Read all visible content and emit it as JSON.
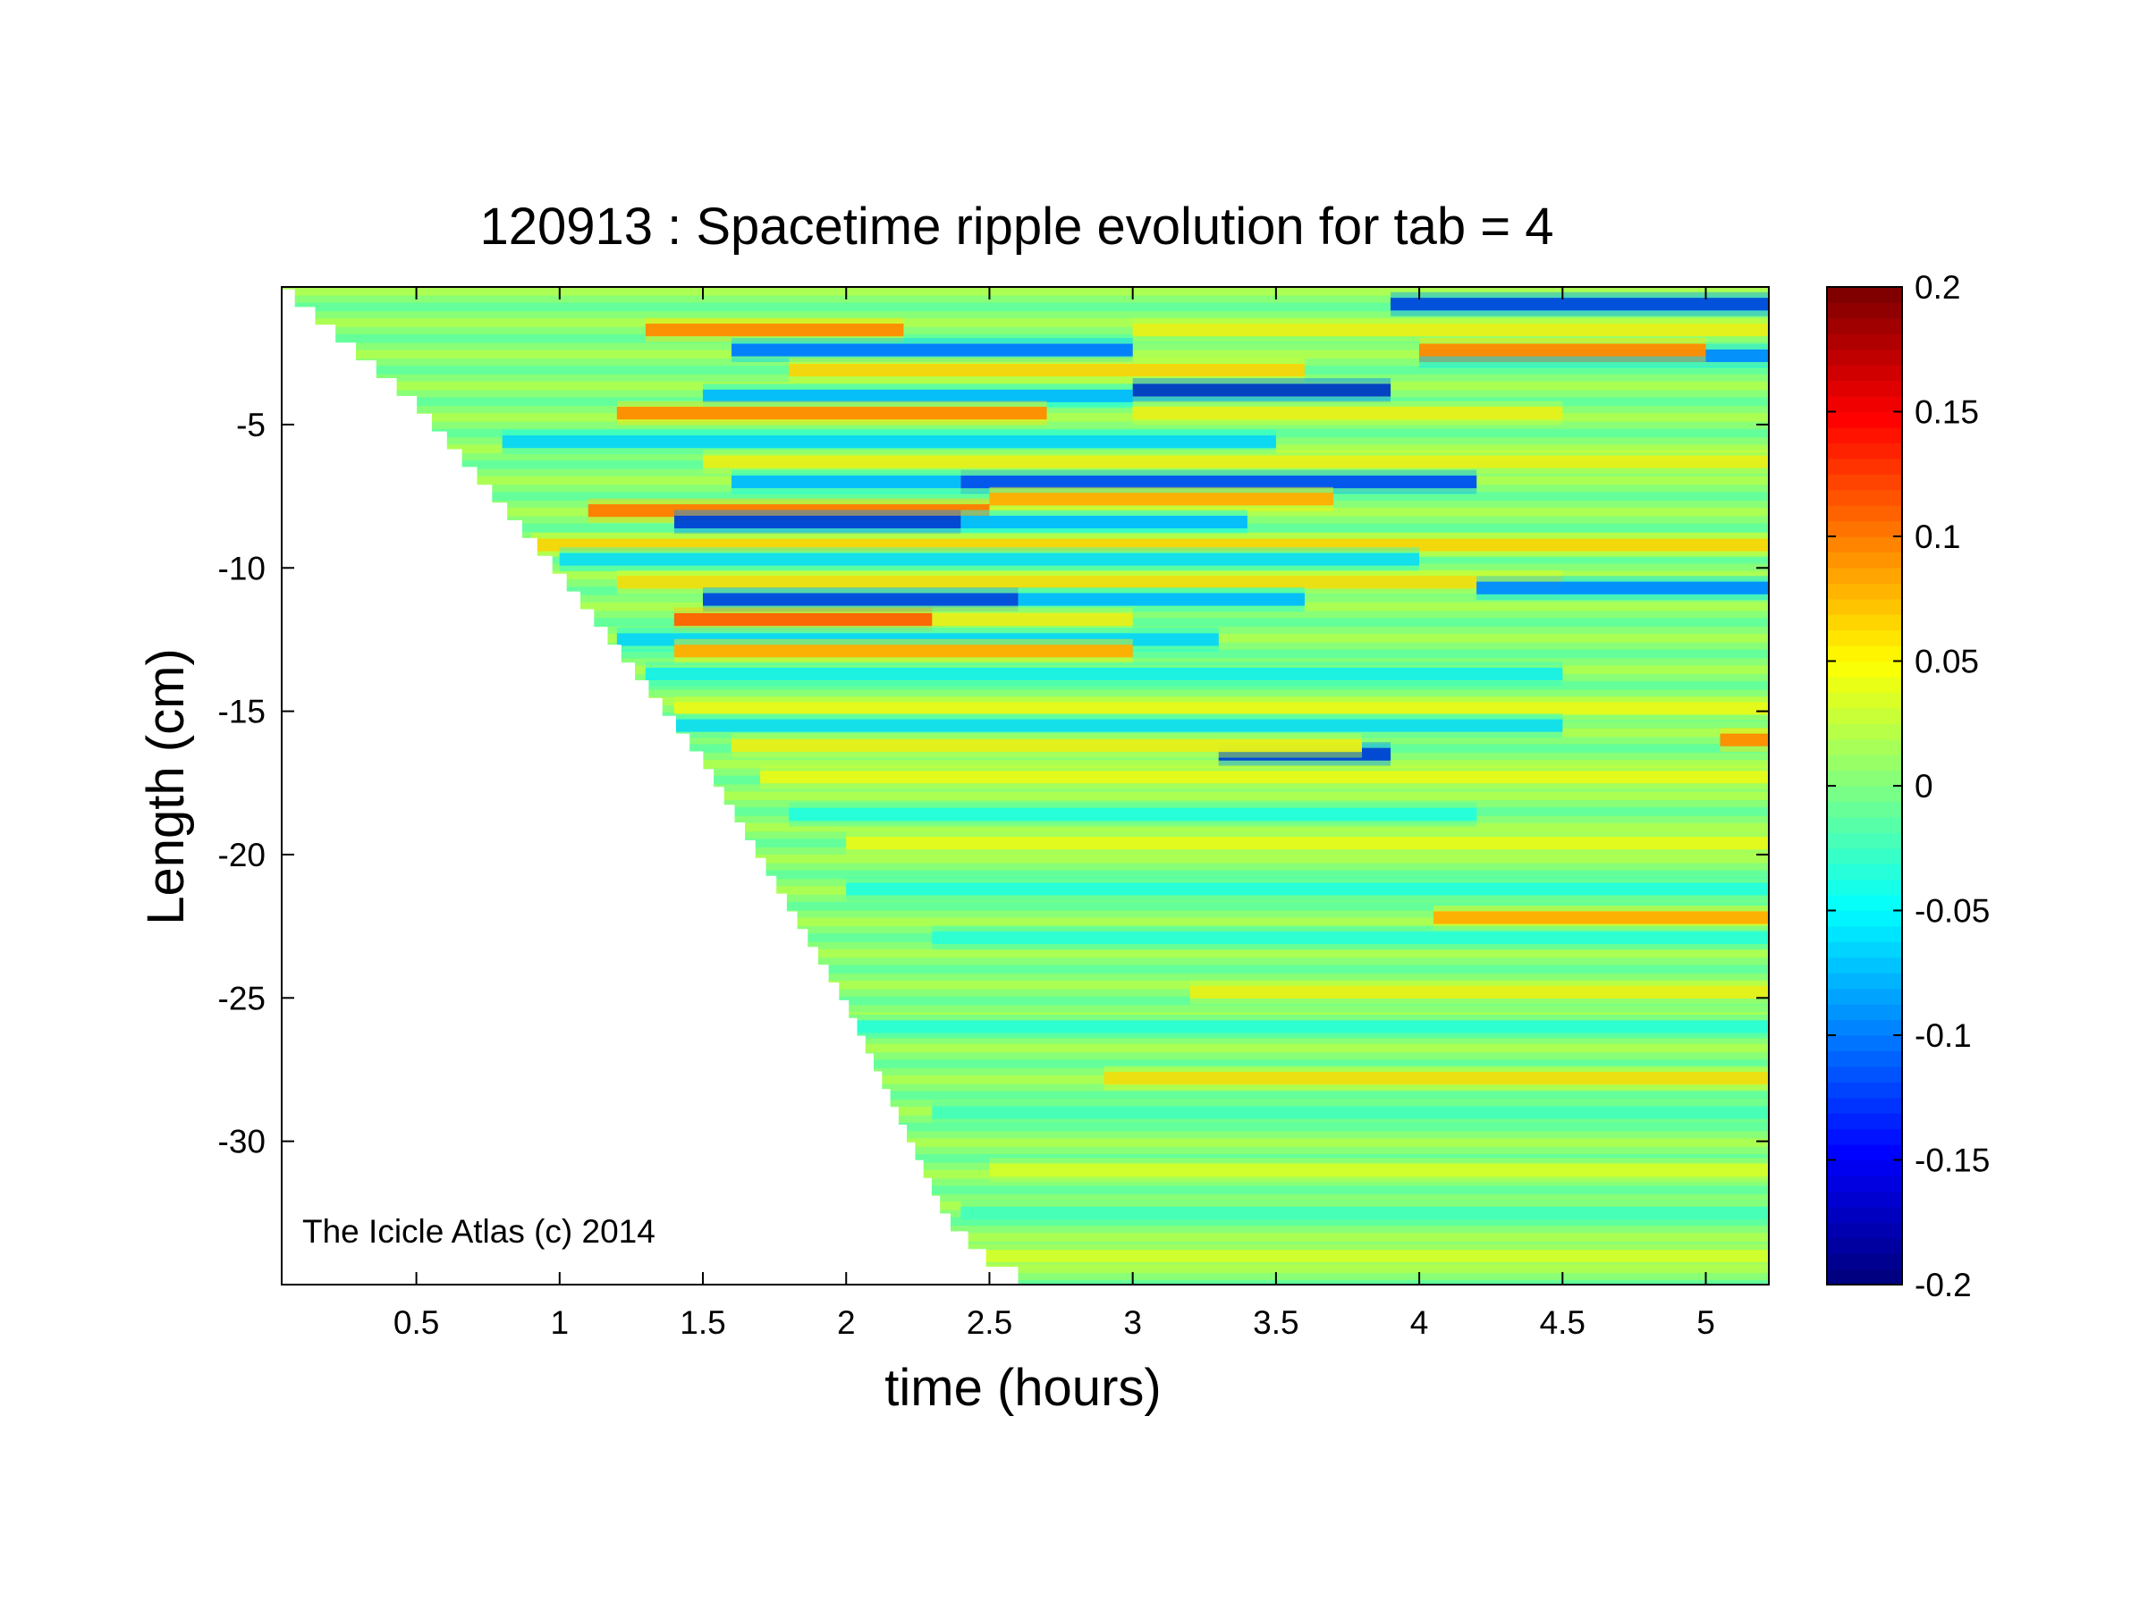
{
  "chart_data": {
    "type": "heatmap",
    "title": "120913 : Spacetime ripple evolution for tab = 4",
    "xlabel": "time (hours)",
    "ylabel": "Length (cm)",
    "xlim": [
      0.03,
      5.22
    ],
    "ylim": [
      -35,
      -0.2
    ],
    "xticks": [
      0.5,
      1,
      1.5,
      2,
      2.5,
      3,
      3.5,
      4,
      4.5,
      5
    ],
    "xtick_labels": [
      "0.5",
      "1",
      "1.5",
      "2",
      "2.5",
      "3",
      "3.5",
      "4",
      "4.5",
      "5"
    ],
    "yticks": [
      -5,
      -10,
      -15,
      -20,
      -25,
      -30
    ],
    "ytick_labels": [
      "-5",
      "-10",
      "-15",
      "-20",
      "-25",
      "-30"
    ],
    "colormap": "jet",
    "colorbar": {
      "range": [
        -0.2,
        0.2
      ],
      "ticks": [
        0.2,
        0.15,
        0.1,
        0.05,
        0,
        -0.05,
        -0.1,
        -0.15,
        -0.2
      ],
      "tick_labels": [
        "0.2",
        "0.15",
        "0.1",
        "0.05",
        "0",
        "-0.05",
        "-0.1",
        "-0.15",
        "-0.2"
      ],
      "levels": 64,
      "placement": "right"
    },
    "grid": false,
    "growth_front": {
      "note_values": "icicle tip position (cm) vs time (hours)",
      "time": [
        0.03,
        0.5,
        1.0,
        1.5,
        2.0,
        2.35,
        2.5,
        2.6
      ],
      "length": [
        -0.5,
        -4.6,
        -10.5,
        -17.0,
        -25.5,
        -33.0,
        -34.5,
        -35.0
      ]
    },
    "bands": [
      {
        "length": -0.8,
        "intensity": -0.17,
        "t_start": 3.9,
        "t_end": 5.22
      },
      {
        "length": -1.7,
        "intensity": 0.12,
        "t_start": 1.3,
        "t_end": 2.2
      },
      {
        "length": -1.7,
        "intensity": 0.06,
        "t_start": 3.0,
        "t_end": 5.22
      },
      {
        "length": -2.4,
        "intensity": -0.13,
        "t_start": 1.6,
        "t_end": 3.0
      },
      {
        "length": -2.6,
        "intensity": -0.12,
        "t_start": 4.0,
        "t_end": 5.22
      },
      {
        "length": -2.4,
        "intensity": 0.12,
        "t_start": 4.0,
        "t_end": 5.0
      },
      {
        "length": -3.1,
        "intensity": 0.08,
        "t_start": 1.8,
        "t_end": 3.6
      },
      {
        "length": -3.8,
        "intensity": -0.19,
        "t_start": 3.0,
        "t_end": 3.9
      },
      {
        "length": -4.0,
        "intensity": -0.1,
        "t_start": 1.5,
        "t_end": 3.0
      },
      {
        "length": -4.6,
        "intensity": 0.12,
        "t_start": 1.2,
        "t_end": 2.7
      },
      {
        "length": -4.6,
        "intensity": 0.06,
        "t_start": 3.0,
        "t_end": 4.5
      },
      {
        "length": -5.6,
        "intensity": -0.08,
        "t_start": 0.8,
        "t_end": 3.5
      },
      {
        "length": -6.3,
        "intensity": 0.06,
        "t_start": 1.5,
        "t_end": 5.22
      },
      {
        "length": -7.0,
        "intensity": -0.16,
        "t_start": 2.4,
        "t_end": 4.2
      },
      {
        "length": -7.0,
        "intensity": -0.1,
        "t_start": 1.6,
        "t_end": 2.4
      },
      {
        "length": -7.6,
        "intensity": 0.1,
        "t_start": 2.5,
        "t_end": 3.7
      },
      {
        "length": -8.0,
        "intensity": 0.13,
        "t_start": 1.1,
        "t_end": 2.5
      },
      {
        "length": -8.4,
        "intensity": -0.18,
        "t_start": 1.4,
        "t_end": 2.4
      },
      {
        "length": -8.4,
        "intensity": -0.1,
        "t_start": 2.4,
        "t_end": 3.4
      },
      {
        "length": -9.2,
        "intensity": 0.08,
        "t_start": 0.9,
        "t_end": 5.22
      },
      {
        "length": -9.7,
        "intensity": -0.07,
        "t_start": 1.0,
        "t_end": 4.0
      },
      {
        "length": -10.5,
        "intensity": 0.07,
        "t_start": 1.2,
        "t_end": 4.5
      },
      {
        "length": -10.7,
        "intensity": -0.12,
        "t_start": 4.2,
        "t_end": 5.22
      },
      {
        "length": -11.1,
        "intensity": -0.17,
        "t_start": 1.5,
        "t_end": 2.6
      },
      {
        "length": -11.1,
        "intensity": -0.1,
        "t_start": 2.6,
        "t_end": 3.6
      },
      {
        "length": -11.8,
        "intensity": 0.14,
        "t_start": 1.4,
        "t_end": 2.3
      },
      {
        "length": -11.8,
        "intensity": 0.06,
        "t_start": 2.3,
        "t_end": 3.0
      },
      {
        "length": -12.5,
        "intensity": -0.08,
        "t_start": 1.2,
        "t_end": 3.3
      },
      {
        "length": -12.9,
        "intensity": 0.1,
        "t_start": 1.4,
        "t_end": 3.0
      },
      {
        "length": -13.7,
        "intensity": -0.06,
        "t_start": 1.3,
        "t_end": 4.5
      },
      {
        "length": -14.9,
        "intensity": 0.05,
        "t_start": 1.4,
        "t_end": 5.22
      },
      {
        "length": -15.5,
        "intensity": -0.07,
        "t_start": 1.4,
        "t_end": 4.5
      },
      {
        "length": -16.0,
        "intensity": 0.12,
        "t_start": 5.05,
        "t_end": 5.22
      },
      {
        "length": -16.5,
        "intensity": -0.18,
        "t_start": 3.3,
        "t_end": 3.9
      },
      {
        "length": -16.2,
        "intensity": 0.06,
        "t_start": 1.6,
        "t_end": 3.8
      },
      {
        "length": -17.3,
        "intensity": 0.05,
        "t_start": 1.7,
        "t_end": 5.22
      },
      {
        "length": -18.6,
        "intensity": -0.05,
        "t_start": 1.8,
        "t_end": 4.2
      },
      {
        "length": -19.6,
        "intensity": 0.05,
        "t_start": 2.0,
        "t_end": 5.22
      },
      {
        "length": -21.2,
        "intensity": -0.05,
        "t_start": 2.0,
        "t_end": 5.22
      },
      {
        "length": -22.2,
        "intensity": 0.1,
        "t_start": 4.05,
        "t_end": 5.22
      },
      {
        "length": -22.9,
        "intensity": -0.04,
        "t_start": 2.3,
        "t_end": 5.22
      },
      {
        "length": -24.8,
        "intensity": 0.06,
        "t_start": 3.2,
        "t_end": 5.22
      },
      {
        "length": -26.0,
        "intensity": -0.04,
        "t_start": 2.0,
        "t_end": 5.22
      },
      {
        "length": -27.8,
        "intensity": 0.07,
        "t_start": 2.9,
        "t_end": 5.22
      },
      {
        "length": -29.0,
        "intensity": -0.03,
        "t_start": 2.3,
        "t_end": 5.22
      },
      {
        "length": -31.0,
        "intensity": 0.04,
        "t_start": 2.5,
        "t_end": 5.22
      },
      {
        "length": -32.5,
        "intensity": -0.03,
        "t_start": 2.4,
        "t_end": 5.22
      },
      {
        "length": -34.0,
        "intensity": 0.04,
        "t_start": 2.4,
        "t_end": 5.22
      }
    ],
    "annotation": "The Icicle Atlas (c) 2014"
  }
}
